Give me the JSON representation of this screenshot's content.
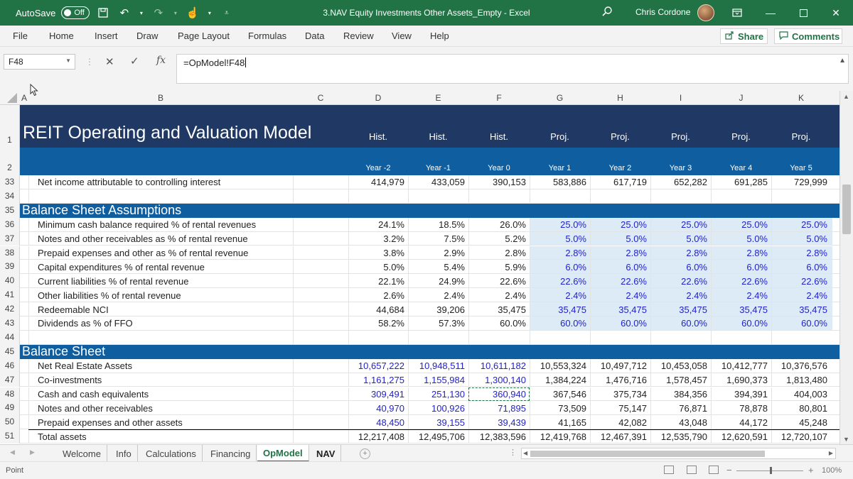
{
  "titlebar": {
    "autosave_label": "AutoSave",
    "autosave_state": "Off",
    "doc_title": "3.NAV Equity Investments Other Assets_Empty  -  Excel",
    "user_name": "Chris Cordone"
  },
  "ribbon": {
    "tabs": [
      "File",
      "Home",
      "Insert",
      "Draw",
      "Page Layout",
      "Formulas",
      "Data",
      "Review",
      "View",
      "Help"
    ],
    "share_label": "Share",
    "comments_label": "Comments"
  },
  "formula_bar": {
    "name_box": "F48",
    "formula": "=OpModel!F48"
  },
  "columns": [
    "A",
    "B",
    "C",
    "D",
    "E",
    "F",
    "G",
    "H",
    "I",
    "J",
    "K"
  ],
  "sheet": {
    "title": "REIT Operating and Valuation Model",
    "period_types": [
      "Hist.",
      "Hist.",
      "Hist.",
      "Proj.",
      "Proj.",
      "Proj.",
      "Proj.",
      "Proj."
    ],
    "years": [
      "Year -2",
      "Year -1",
      "Year 0",
      "Year 1",
      "Year 2",
      "Year 3",
      "Year 4",
      "Year 5"
    ],
    "row33": {
      "num": "33",
      "label": "Net income attributable to controlling interest",
      "values": [
        "414,979",
        "433,059",
        "390,153",
        "583,886",
        "617,719",
        "652,282",
        "691,285",
        "729,999"
      ]
    },
    "section1": {
      "num": "35",
      "title": "Balance Sheet Assumptions"
    },
    "assumptions": [
      {
        "num": "36",
        "label": "Minimum cash balance required % of rental revenues",
        "values": [
          "24.1%",
          "18.5%",
          "26.0%",
          "25.0%",
          "25.0%",
          "25.0%",
          "25.0%",
          "25.0%"
        ]
      },
      {
        "num": "37",
        "label": "Notes and other receivables as % of rental revenue",
        "values": [
          "3.2%",
          "7.5%",
          "5.2%",
          "5.0%",
          "5.0%",
          "5.0%",
          "5.0%",
          "5.0%"
        ]
      },
      {
        "num": "38",
        "label": "Prepaid expenses and other as % of rental revenue",
        "values": [
          "3.8%",
          "2.9%",
          "2.8%",
          "2.8%",
          "2.8%",
          "2.8%",
          "2.8%",
          "2.8%"
        ]
      },
      {
        "num": "39",
        "label": "Capital expenditures % of rental revenue",
        "values": [
          "5.0%",
          "5.4%",
          "5.9%",
          "6.0%",
          "6.0%",
          "6.0%",
          "6.0%",
          "6.0%"
        ]
      },
      {
        "num": "40",
        "label": "Current liabilities % of rental revenue",
        "values": [
          "22.1%",
          "24.9%",
          "22.6%",
          "22.6%",
          "22.6%",
          "22.6%",
          "22.6%",
          "22.6%"
        ]
      },
      {
        "num": "41",
        "label": "Other liabilities % of rental revenue",
        "values": [
          "2.6%",
          "2.4%",
          "2.4%",
          "2.4%",
          "2.4%",
          "2.4%",
          "2.4%",
          "2.4%"
        ]
      },
      {
        "num": "42",
        "label": "Redeemable NCI",
        "values": [
          "44,684",
          "39,206",
          "35,475",
          "35,475",
          "35,475",
          "35,475",
          "35,475",
          "35,475"
        ]
      },
      {
        "num": "43",
        "label": "Dividends as % of FFO",
        "values": [
          "58.2%",
          "57.3%",
          "60.0%",
          "60.0%",
          "60.0%",
          "60.0%",
          "60.0%",
          "60.0%"
        ]
      }
    ],
    "section2": {
      "num": "45",
      "title": "Balance Sheet"
    },
    "balance": [
      {
        "num": "46",
        "label": "Net Real Estate Assets",
        "values": [
          "10,657,222",
          "10,948,511",
          "10,611,182",
          "10,553,324",
          "10,497,712",
          "10,453,058",
          "10,412,777",
          "10,376,576"
        ]
      },
      {
        "num": "47",
        "label": "Co-investments",
        "values": [
          "1,161,275",
          "1,155,984",
          "1,300,140",
          "1,384,224",
          "1,476,716",
          "1,578,457",
          "1,690,373",
          "1,813,480"
        ]
      },
      {
        "num": "48",
        "label": "Cash and cash equivalents",
        "values": [
          "309,491",
          "251,130",
          "360,940",
          "367,546",
          "375,734",
          "384,356",
          "394,391",
          "404,003"
        ]
      },
      {
        "num": "49",
        "label": "Notes and other receivables",
        "values": [
          "40,970",
          "100,926",
          "71,895",
          "73,509",
          "75,147",
          "76,871",
          "78,878",
          "80,801"
        ]
      },
      {
        "num": "50",
        "label": "Prepaid expenses and other assets",
        "values": [
          "48,450",
          "39,155",
          "39,439",
          "41,165",
          "42,082",
          "43,048",
          "44,172",
          "45,248"
        ]
      },
      {
        "num": "51",
        "label": "Total assets",
        "values": [
          "12,217,408",
          "12,495,706",
          "12,383,596",
          "12,419,768",
          "12,467,391",
          "12,535,790",
          "12,620,591",
          "12,720,107"
        ]
      }
    ],
    "blank_rows": [
      "34",
      "44"
    ],
    "header_row_nums": [
      "1",
      "2"
    ]
  },
  "sheet_tabs": [
    "Welcome",
    "Info",
    "Calculations",
    "Financing",
    "OpModel",
    "NAV"
  ],
  "active_sheet": "OpModel",
  "status": {
    "mode": "Point",
    "zoom": "100%"
  },
  "colors": {
    "excel_green": "#217346",
    "navy": "#1f3864",
    "band_blue": "#0e5ea0",
    "input_blue": "#2222cc",
    "proj_fill": "#ddebf7"
  }
}
